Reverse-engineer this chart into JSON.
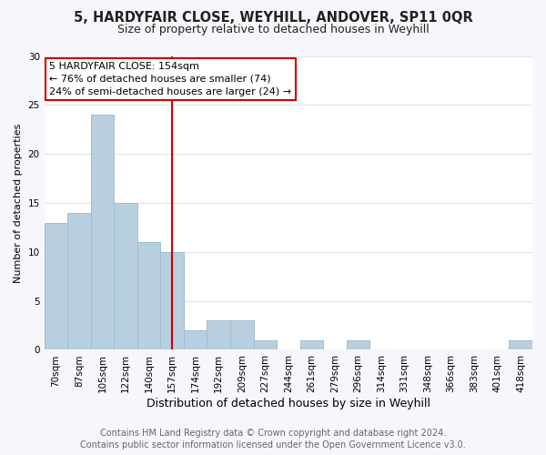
{
  "title1": "5, HARDYFAIR CLOSE, WEYHILL, ANDOVER, SP11 0QR",
  "title2": "Size of property relative to detached houses in Weyhill",
  "xlabel": "Distribution of detached houses by size in Weyhill",
  "ylabel": "Number of detached properties",
  "bar_labels": [
    "70sqm",
    "87sqm",
    "105sqm",
    "122sqm",
    "140sqm",
    "157sqm",
    "174sqm",
    "192sqm",
    "209sqm",
    "227sqm",
    "244sqm",
    "261sqm",
    "279sqm",
    "296sqm",
    "314sqm",
    "331sqm",
    "348sqm",
    "366sqm",
    "383sqm",
    "401sqm",
    "418sqm"
  ],
  "bar_heights": [
    13,
    14,
    24,
    15,
    11,
    10,
    2,
    3,
    3,
    1,
    0,
    1,
    0,
    1,
    0,
    0,
    0,
    0,
    0,
    0,
    1
  ],
  "bar_color": "#b8cfe0",
  "bar_edge_color": "#a0bcd0",
  "vline_x_index": 5,
  "vline_color": "#cc0000",
  "annotation_text": "5 HARDYFAIR CLOSE: 154sqm\n← 76% of detached houses are smaller (74)\n24% of semi-detached houses are larger (24) →",
  "annotation_box_color": "#ffffff",
  "annotation_box_edge": "#cc0000",
  "ylim": [
    0,
    30
  ],
  "yticks": [
    0,
    5,
    10,
    15,
    20,
    25,
    30
  ],
  "footer_text": "Contains HM Land Registry data © Crown copyright and database right 2024.\nContains public sector information licensed under the Open Government Licence v3.0.",
  "title1_fontsize": 10.5,
  "title2_fontsize": 9,
  "xlabel_fontsize": 9,
  "ylabel_fontsize": 8,
  "tick_fontsize": 7.5,
  "footer_fontsize": 7,
  "grid_color": "#dde5ee",
  "background_color": "#ffffff",
  "fig_bg_color": "#f5f7fa"
}
